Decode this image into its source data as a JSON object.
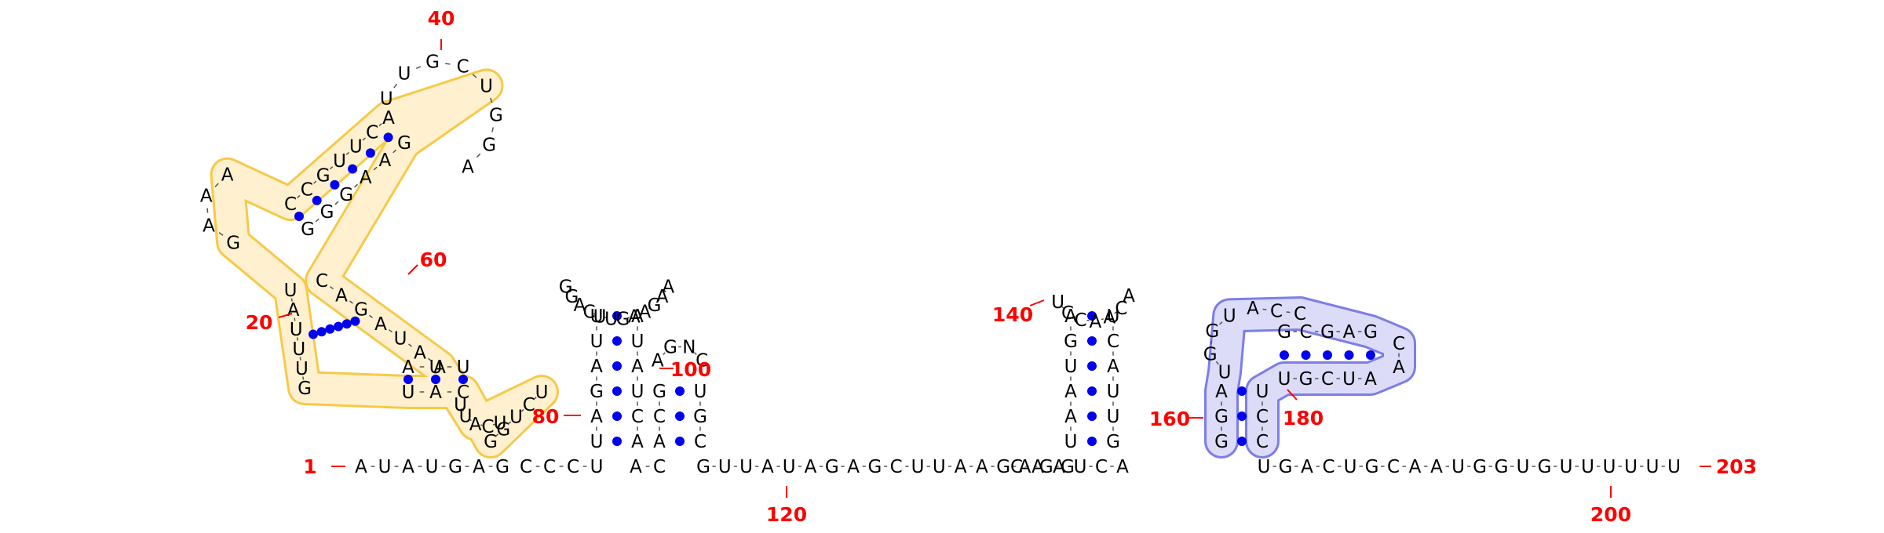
{
  "colors": {
    "nucleotide": "#000000",
    "pair_dot": "#0000ee",
    "index_label": "#ff0000",
    "tick": "#ff0000",
    "highlight_orange_fill": "#fff1cf",
    "highlight_orange_stroke": "#f7c948",
    "highlight_orange_strong": "#fcd76b",
    "highlight_blue_fill": "#dcdcf8",
    "highlight_blue_stroke": "#7d7de8",
    "highlight_blue_strong": "#9d9dec"
  },
  "sequence": "AUAUGAGGCCCUACGUUAUAUAGAGCUUAAGAGGCAAUCAUGACUGCAAUGGUGUUUUUU",
  "index_labels": [
    "1",
    "20",
    "40",
    "60",
    "80",
    "100",
    "120",
    "140",
    "160",
    "180",
    "200",
    "203"
  ],
  "structure": {
    "main_strand": {
      "left_5prime": [
        "A",
        "U",
        "A",
        "U",
        "G",
        "A",
        "G"
      ],
      "mid_a": [
        "C",
        "C",
        "C",
        "U"
      ],
      "mid_b": [
        "A",
        "C"
      ],
      "long_run": [
        "G",
        "U",
        "U",
        "A",
        "U",
        "A",
        "G",
        "A",
        "G",
        "C",
        "U",
        "U",
        "A",
        "A",
        "G",
        "A",
        "G",
        "G"
      ],
      "mid_c": [
        "C",
        "A",
        "A",
        "U",
        "C",
        "A"
      ],
      "tail_3prime": [
        "U",
        "G",
        "A",
        "C",
        "U",
        "G",
        "C",
        "A",
        "A",
        "U",
        "G",
        "G",
        "U",
        "G",
        "U",
        "U",
        "U",
        "U",
        "U",
        "U"
      ]
    },
    "hairpin_1": {
      "left_stem": [
        "U",
        "A",
        "G",
        "A",
        "U",
        "U"
      ],
      "right_stem": [
        "A",
        "U",
        "A",
        "U",
        "C",
        "A"
      ],
      "loop": [
        "G",
        "G",
        "A",
        "C",
        "U",
        "U",
        "G",
        "A",
        "A",
        "G",
        "A",
        "A"
      ]
    },
    "hairpin_2": {
      "left_stem": [
        "A",
        "C",
        "G"
      ],
      "right_stem": [
        "C",
        "G",
        "U"
      ],
      "loop": [
        "A",
        "G",
        "N",
        "C"
      ]
    },
    "hairpin_3": {
      "left_stem": [
        "A",
        "G",
        "U",
        "A",
        "A",
        "U"
      ],
      "right_stem": [
        "U",
        "C",
        "A",
        "U",
        "U",
        "G"
      ],
      "loop": [
        "U",
        "C",
        "C",
        "A",
        "A",
        "C",
        "A"
      ]
    },
    "blue_domain": {
      "stem_left": [
        "G",
        "G",
        "A"
      ],
      "stem_right": [
        "C",
        "C",
        "U"
      ],
      "loop_left": [
        "U",
        "G",
        "G",
        "U"
      ],
      "loop_top": [
        "A",
        "C",
        "C"
      ],
      "inner_top": [
        "G",
        "C",
        "G",
        "A",
        "G"
      ],
      "inner_bottom": [
        "U",
        "G",
        "C",
        "U",
        "A"
      ],
      "inner_right": [
        "C",
        "A"
      ]
    },
    "orange_domain": {
      "entry": [
        "G",
        "G",
        "U",
        "C",
        "U"
      ],
      "bulge_left": [
        "U",
        "C",
        "A",
        "U",
        "U"
      ],
      "stem_outer": [
        "G",
        "U",
        "U",
        "U",
        "A",
        "U"
      ],
      "stem_inner": [
        "C",
        "A",
        "G",
        "A",
        "U",
        "A",
        "A"
      ],
      "mid_helix_a": [
        "U",
        "A",
        "C"
      ],
      "mid_helix_b": [
        "A",
        "U",
        "U"
      ],
      "upper_left": [
        "G",
        "A",
        "A",
        "A"
      ],
      "upper_stem_a": [
        "C",
        "C",
        "G",
        "U",
        "U",
        "C",
        "A"
      ],
      "upper_stem_b": [
        "G",
        "G",
        "G",
        "A",
        "A",
        "G"
      ],
      "top_loop": [
        "U",
        "U",
        "G",
        "C",
        "U",
        "G",
        "G",
        "A"
      ]
    }
  }
}
